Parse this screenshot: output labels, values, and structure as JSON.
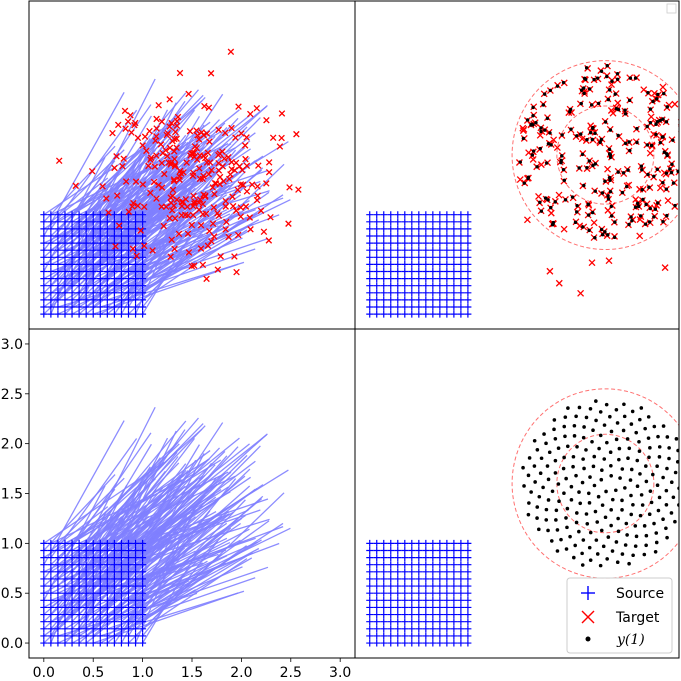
{
  "chart_data": {
    "type": "scatter",
    "layout": "2x2 grid, shared axes",
    "xlim": [
      -0.15,
      3.15
    ],
    "ylim": [
      -0.15,
      3.15
    ],
    "x_ticks": [
      "0.0",
      "0.5",
      "1.0",
      "1.5",
      "2.0",
      "2.5",
      "3.0"
    ],
    "y_ticks": [
      "0.0",
      "0.5",
      "1.0",
      "1.5",
      "2.0",
      "2.5",
      "3.0"
    ],
    "source_grid": {
      "x_range": [
        0,
        1
      ],
      "y_range": [
        0,
        1
      ],
      "n": 15
    },
    "target_ring": {
      "center": [
        2.4,
        1.6
      ],
      "radius": 0.95
    },
    "panels": [
      {
        "position": "top-left",
        "content": "source grid, target samples, transport lines"
      },
      {
        "position": "top-right",
        "content": "source grid, target samples, y(1) overlay, ring"
      },
      {
        "position": "bottom-left",
        "content": "source grid, transport lines"
      },
      {
        "position": "bottom-right",
        "content": "source grid, y(1) sunflower, ring, legend"
      }
    ],
    "colors": {
      "source": "#0000ff",
      "target": "#ff0000",
      "line": "#8080ff",
      "y1": "#000000",
      "ring": "#ff7070"
    }
  },
  "legend": {
    "source_label": "Source",
    "target_label": "Target",
    "y1_label": "y(1)",
    "placement": "lower-right"
  }
}
